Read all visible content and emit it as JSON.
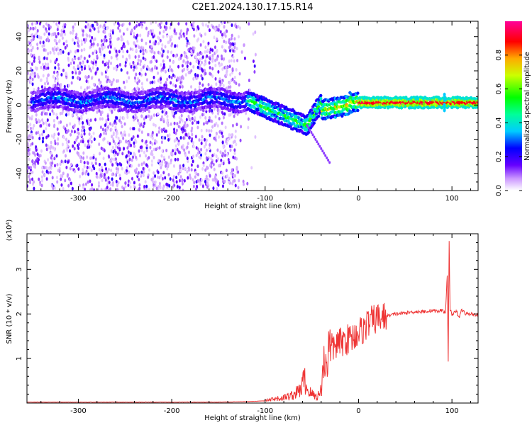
{
  "chart_data": [
    {
      "type": "heatmap",
      "title": "C2E1.2024.130.17.15.R14",
      "xlabel": "Height of straight line (km)",
      "ylabel": "Frequency (Hz)",
      "xlim": [
        -355,
        128
      ],
      "ylim": [
        -50,
        49
      ],
      "x_ticks": [
        -300,
        -200,
        -100,
        0,
        100
      ],
      "y_ticks": [
        -40,
        -20,
        0,
        20,
        40
      ],
      "colorbar": {
        "label": "Normalized spectral amplitude",
        "range": [
          0,
          1
        ],
        "ticks": [
          0.0,
          0.2,
          0.4,
          0.6,
          0.8
        ]
      },
      "colors": [
        "#ffffff",
        "#6600ff",
        "#00ffff",
        "#00ff00",
        "#ffff00",
        "#ff0000",
        "#ff0099"
      ]
    },
    {
      "type": "line",
      "xlabel": "Height of straight line (km)",
      "ylabel": "SNR (10 * v/v)",
      "y_multiplier": "(x10⁴)",
      "xlim": [
        -355,
        128
      ],
      "ylim": [
        0,
        3.8
      ],
      "x_ticks": [
        -300,
        -200,
        -100,
        0,
        100
      ],
      "y_ticks": [
        1,
        2,
        3
      ],
      "color": "#ee3333",
      "series": [
        {
          "x": [
            -355,
            -300,
            -200,
            -150,
            -120,
            -100,
            -90,
            -80,
            -70,
            -62,
            -58,
            -55,
            -50,
            -45,
            -42,
            -40,
            -38,
            -35,
            -30,
            -25,
            -20,
            -15,
            -10,
            -5,
            0,
            5,
            10,
            20,
            30,
            40,
            50,
            60,
            70,
            80,
            85,
            90,
            93,
            95,
            96,
            97,
            98,
            100,
            105,
            108,
            110,
            115,
            120,
            128
          ],
          "y": [
            0.02,
            0.02,
            0.02,
            0.02,
            0.03,
            0.05,
            0.08,
            0.12,
            0.18,
            0.3,
            0.55,
            0.3,
            0.2,
            0.15,
            0.2,
            0.3,
            0.8,
            1.0,
            1.2,
            1.3,
            1.35,
            1.4,
            1.45,
            1.5,
            1.6,
            1.65,
            1.8,
            1.9,
            1.95,
            2.0,
            2.02,
            2.05,
            2.05,
            2.08,
            2.05,
            2.1,
            2.0,
            2.9,
            0.9,
            3.6,
            2.1,
            2.0,
            2.05,
            1.9,
            2.1,
            2.0,
            2.0,
            1.98
          ]
        }
      ]
    }
  ]
}
